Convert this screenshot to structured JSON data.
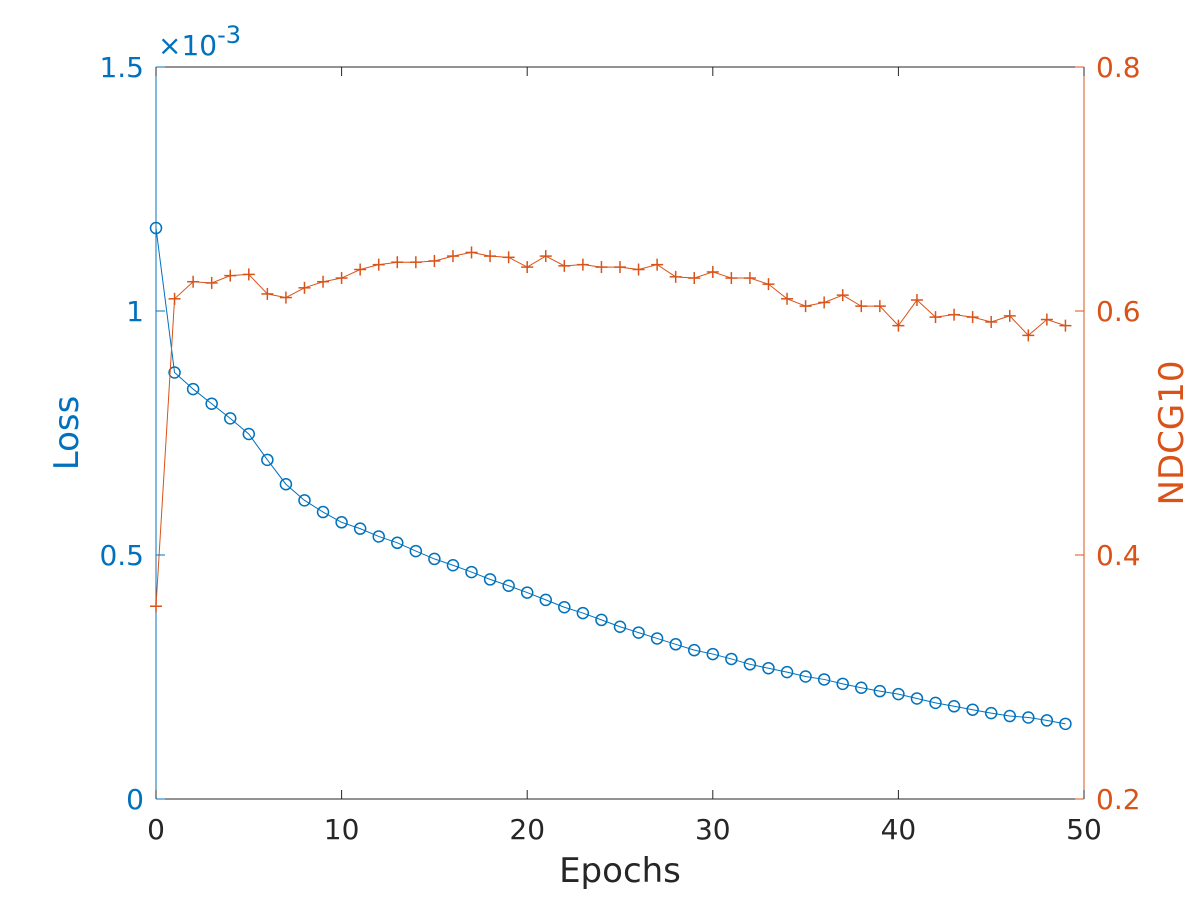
{
  "colors": {
    "loss": "#0072BD",
    "ndcg": "#D95319",
    "axis": "#262626",
    "background": "#ffffff"
  },
  "chart_data": {
    "type": "line",
    "title": "",
    "xlabel": "Epochs",
    "ylabel": "Loss",
    "ylabel_right": "NDCG10",
    "xlim": [
      0,
      50
    ],
    "ylim": [
      0,
      1.5
    ],
    "ylim_right": [
      0.2,
      0.8
    ],
    "y_exponent_label": "×10-3",
    "y_exponent_base": "×10",
    "y_exponent_power": "-3",
    "x_ticks": [
      "0",
      "10",
      "20",
      "30",
      "40",
      "50"
    ],
    "y_ticks": [
      "0",
      "0.5",
      "1",
      "1.5"
    ],
    "y_ticks_right": [
      "0.2",
      "0.4",
      "0.6",
      "0.8"
    ],
    "grid": false,
    "x": [
      0,
      1,
      2,
      3,
      4,
      5,
      6,
      7,
      8,
      9,
      10,
      11,
      12,
      13,
      14,
      15,
      16,
      17,
      18,
      19,
      20,
      21,
      22,
      23,
      24,
      25,
      26,
      27,
      28,
      29,
      30,
      31,
      32,
      33,
      34,
      35,
      36,
      37,
      38,
      39,
      40,
      41,
      42,
      43,
      44,
      45,
      46,
      47,
      48,
      49
    ],
    "series": [
      {
        "name": "Loss",
        "axis": "left",
        "marker": "circle",
        "values": [
          1.17,
          0.874,
          0.84,
          0.81,
          0.78,
          0.748,
          0.695,
          0.645,
          0.612,
          0.588,
          0.567,
          0.554,
          0.538,
          0.525,
          0.508,
          0.492,
          0.479,
          0.465,
          0.45,
          0.437,
          0.423,
          0.408,
          0.393,
          0.381,
          0.367,
          0.353,
          0.341,
          0.329,
          0.317,
          0.305,
          0.297,
          0.287,
          0.276,
          0.268,
          0.26,
          0.251,
          0.245,
          0.236,
          0.228,
          0.221,
          0.215,
          0.206,
          0.197,
          0.19,
          0.183,
          0.176,
          0.17,
          0.167,
          0.161,
          0.154
        ]
      },
      {
        "name": "NDCG10",
        "axis": "right",
        "marker": "plus",
        "values": [
          0.358,
          0.61,
          0.624,
          0.623,
          0.629,
          0.63,
          0.614,
          0.611,
          0.619,
          0.624,
          0.627,
          0.634,
          0.638,
          0.64,
          0.64,
          0.641,
          0.645,
          0.648,
          0.645,
          0.644,
          0.636,
          0.645,
          0.637,
          0.638,
          0.636,
          0.636,
          0.634,
          0.638,
          0.628,
          0.627,
          0.632,
          0.627,
          0.627,
          0.622,
          0.61,
          0.604,
          0.607,
          0.613,
          0.604,
          0.604,
          0.588,
          0.609,
          0.595,
          0.597,
          0.595,
          0.591,
          0.596,
          0.58,
          0.593,
          0.588
        ]
      }
    ]
  }
}
